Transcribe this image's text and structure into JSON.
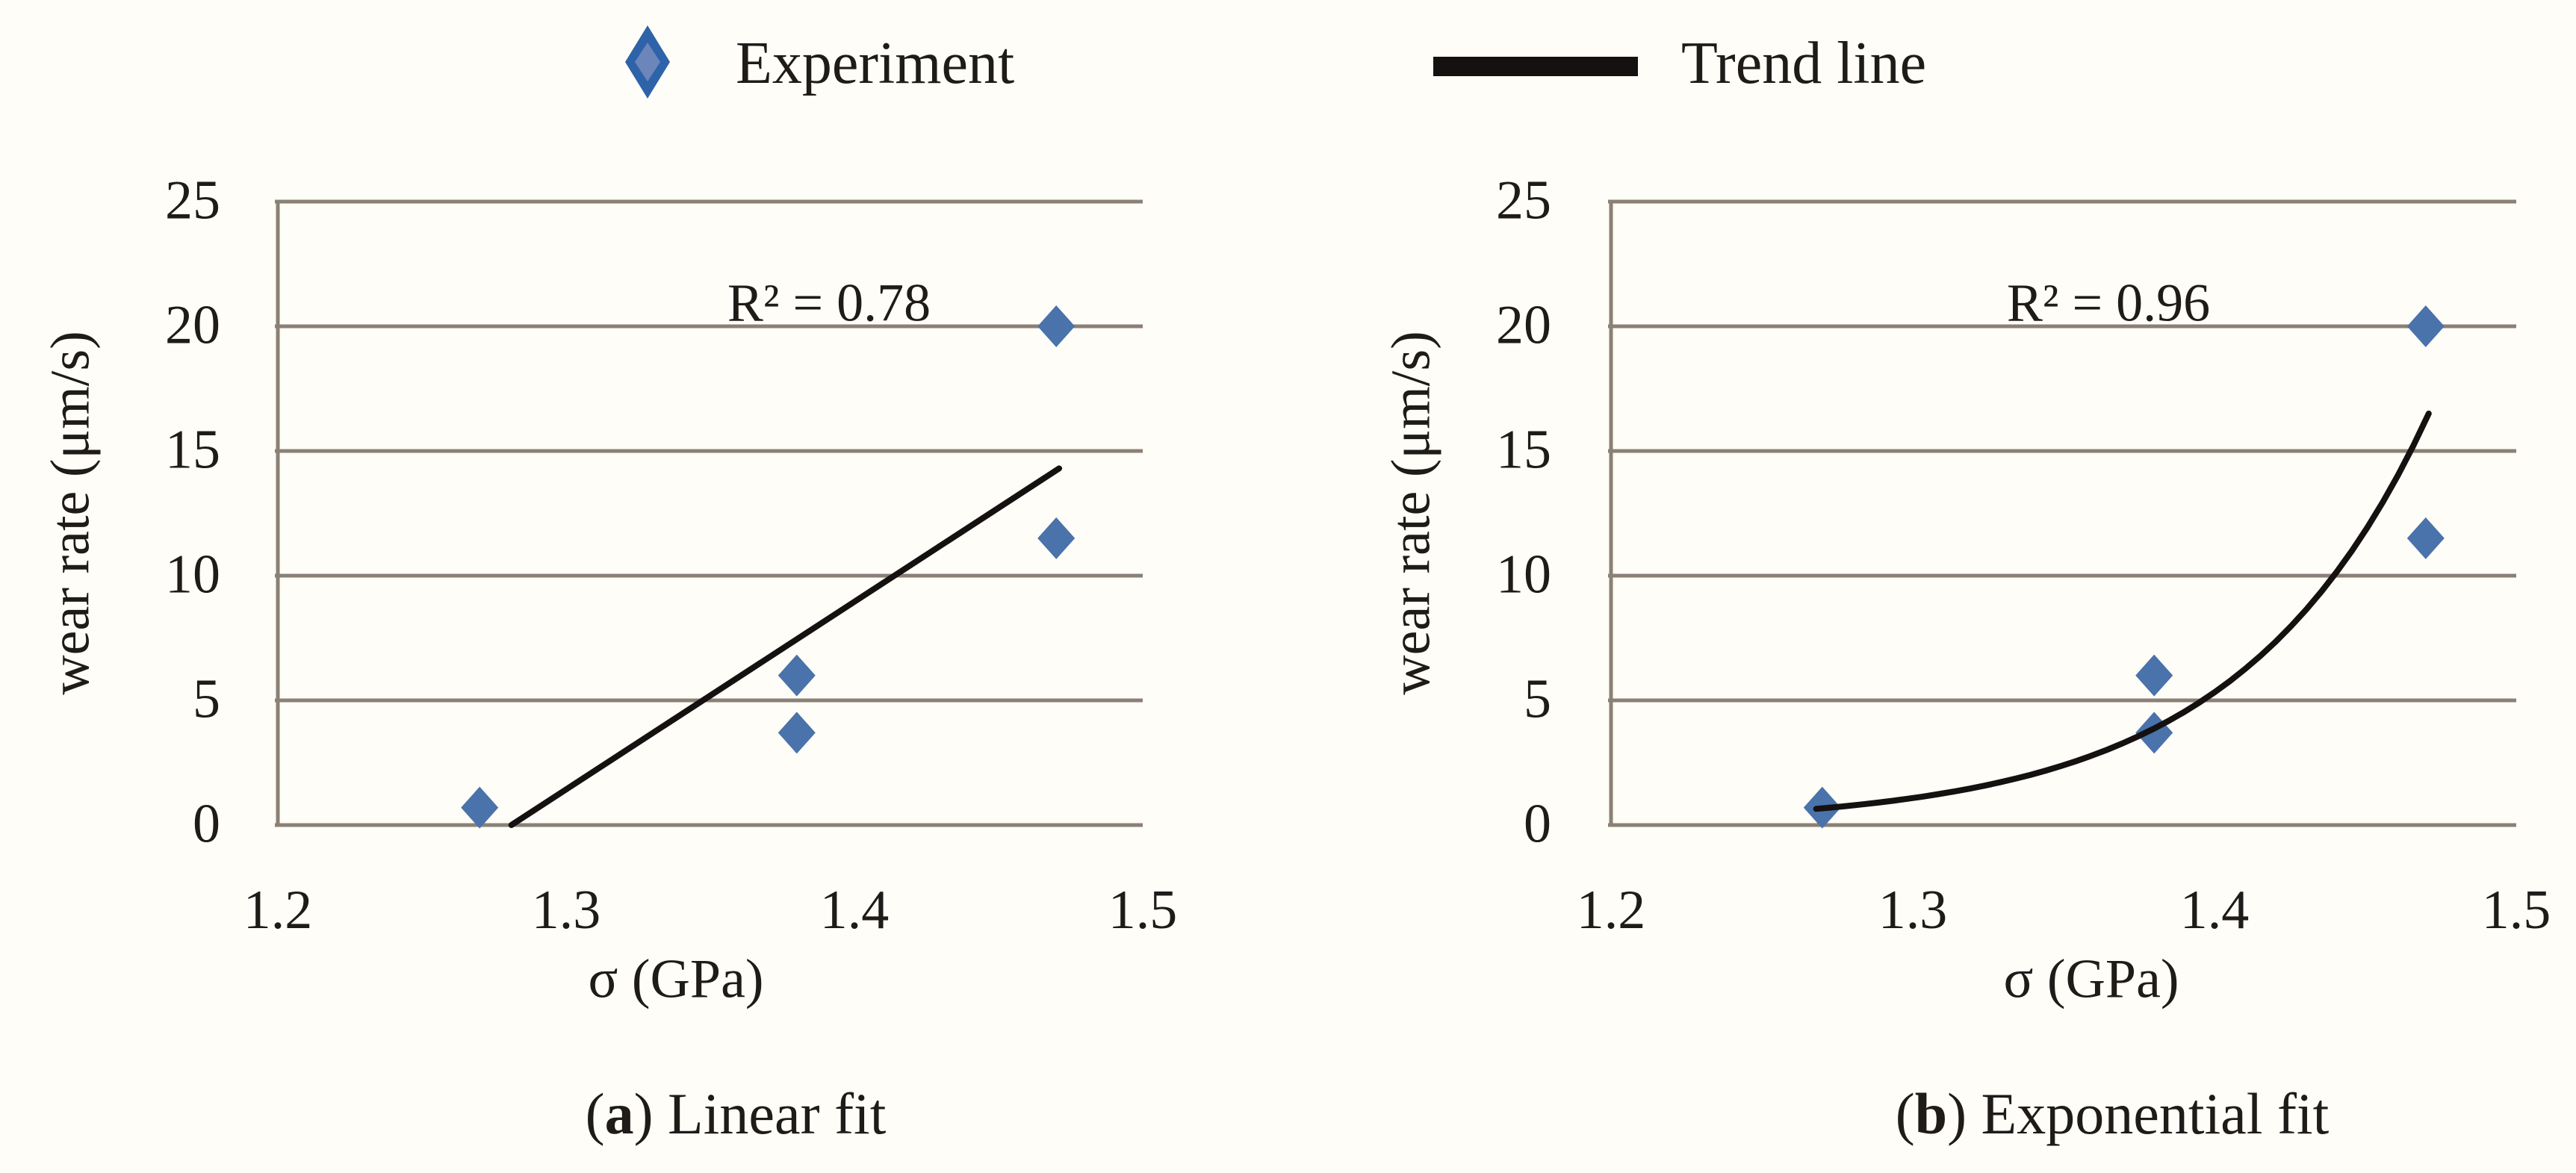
{
  "palette": {
    "background": "#fffdf7",
    "text": "#1f1b18",
    "grid_axis": "#8b8076",
    "trend_line": "#141110",
    "marker_blue": "#4a72ab",
    "legend_marker_outer": "#2e63a9",
    "legend_marker_inner": "#6c86bb"
  },
  "legend": {
    "items": [
      {
        "label": "Experiment",
        "marker": "diamond",
        "outer_color": "#2e63a9",
        "inner_color": "#6c86bb"
      },
      {
        "label": "Trend line",
        "marker": "line-swatch",
        "color": "#141110"
      }
    ]
  },
  "chart_data": [
    {
      "type": "scatter",
      "panel": "a",
      "xlabel": "σ (GPa)",
      "ylabel": "wear rate (μm/s)",
      "xlim": [
        1.2,
        1.5
      ],
      "ylim": [
        0,
        25
      ],
      "xticks": [
        "1.2",
        "1.3",
        "1.4",
        "1.5"
      ],
      "yticks": [
        "0",
        "5",
        "10",
        "15",
        "20",
        "25"
      ],
      "grid": "horizontal gridlines",
      "legend_position": "top-shared",
      "annotation": "R² = 0.78",
      "caption": {
        "open": "(",
        "letter": "a",
        "rest": ") Linear fit"
      },
      "series": [
        {
          "name": "Experiment",
          "kind": "scatter",
          "marker": "diamond",
          "color": "#4a72ab",
          "points": [
            [
              1.27,
              0.7
            ],
            [
              1.38,
              6.0
            ],
            [
              1.38,
              3.7
            ],
            [
              1.47,
              20.0
            ],
            [
              1.47,
              11.5
            ]
          ]
        },
        {
          "name": "Trend line",
          "kind": "line",
          "fit": "linear",
          "color": "#141110",
          "from": [
            1.281,
            0.0
          ],
          "to": [
            1.471,
            14.3
          ]
        }
      ]
    },
    {
      "type": "scatter",
      "panel": "b",
      "xlabel": "σ (GPa)",
      "ylabel": "wear rate (μm/s)",
      "xlim": [
        1.2,
        1.5
      ],
      "ylim": [
        0,
        25
      ],
      "xticks": [
        "1.2",
        "1.3",
        "1.4",
        "1.5"
      ],
      "yticks": [
        "0",
        "5",
        "10",
        "15",
        "20",
        "25"
      ],
      "grid": "horizontal gridlines",
      "legend_position": "top-shared",
      "annotation": "R² = 0.96",
      "caption": {
        "open": "(",
        "letter": "b",
        "rest": ") Exponential fit"
      },
      "series": [
        {
          "name": "Experiment",
          "kind": "scatter",
          "marker": "diamond",
          "color": "#4a72ab",
          "points": [
            [
              1.27,
              0.7
            ],
            [
              1.38,
              6.0
            ],
            [
              1.38,
              3.7
            ],
            [
              1.47,
              20.0
            ],
            [
              1.47,
              11.5
            ]
          ]
        },
        {
          "name": "Trend line",
          "kind": "line",
          "fit": "exponential",
          "color": "#141110",
          "from": [
            1.268,
            0.65
          ],
          "to": [
            1.471,
            16.5
          ]
        }
      ]
    }
  ]
}
